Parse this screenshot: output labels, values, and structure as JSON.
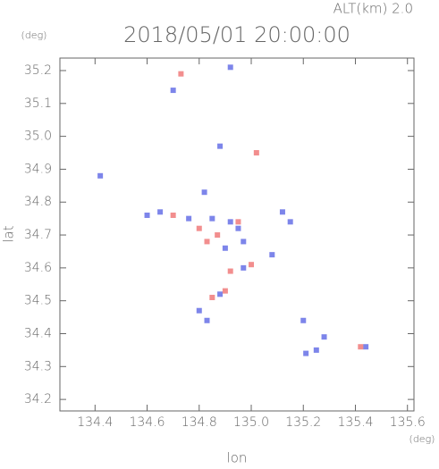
{
  "chart_data": {
    "type": "scatter",
    "title": "2018/05/01 20:00:00",
    "subtitle": "ALT(km) 2.0",
    "x_label": "lon",
    "y_label": "lat",
    "x_unit": "(deg)",
    "y_unit": "(deg)",
    "xlim": [
      134.265,
      135.625
    ],
    "ylim": [
      34.165,
      35.238
    ],
    "xticks": [
      134.4,
      134.6,
      134.8,
      {
        "value": 135,
        "label": "135.0"
      },
      135.2,
      135.4,
      135.6
    ],
    "yticks": [
      34.2,
      34.3,
      34.4,
      34.5,
      34.6,
      34.7,
      34.8,
      34.9,
      {
        "value": 35,
        "label": "35.0"
      },
      35.1,
      35.2
    ],
    "series": [
      {
        "color": "#6670e6",
        "x": [
          134.7,
          134.92,
          134.88,
          134.42,
          134.6,
          134.65,
          134.76,
          134.85,
          134.92,
          134.97,
          135.12,
          135.15,
          134.97,
          134.88,
          134.83,
          135.21,
          135.25,
          135.28,
          135.2,
          134.9,
          134.82,
          134.95,
          135.08,
          134.8,
          135.44
        ],
        "y": [
          35.14,
          35.21,
          34.97,
          34.88,
          34.76,
          34.77,
          34.75,
          34.75,
          34.74,
          34.68,
          34.77,
          34.74,
          34.6,
          34.52,
          34.44,
          34.34,
          34.35,
          34.39,
          34.44,
          34.66,
          34.83,
          34.72,
          34.64,
          34.47,
          34.36
        ]
      },
      {
        "color": "#f07a7a",
        "x": [
          134.73,
          134.8,
          134.87,
          134.95,
          134.9,
          135.02,
          134.92,
          134.85,
          135.42,
          134.7,
          134.83,
          135.0
        ],
        "y": [
          35.19,
          34.72,
          34.7,
          34.74,
          34.53,
          34.95,
          34.59,
          34.51,
          34.36,
          34.76,
          34.68,
          34.61
        ]
      }
    ]
  }
}
